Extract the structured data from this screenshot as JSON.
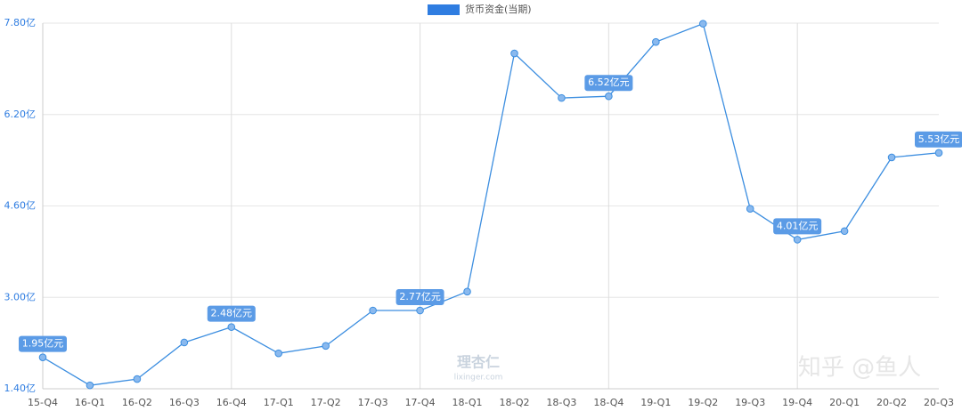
{
  "chart_data": {
    "type": "line",
    "legend": "货币资金(当期)",
    "categories": [
      "15-Q4",
      "16-Q1",
      "16-Q2",
      "16-Q3",
      "16-Q4",
      "17-Q1",
      "17-Q2",
      "17-Q3",
      "17-Q4",
      "18-Q1",
      "18-Q2",
      "18-Q3",
      "18-Q4",
      "19-Q1",
      "19-Q2",
      "19-Q3",
      "19-Q4",
      "20-Q1",
      "20-Q2",
      "20-Q3"
    ],
    "series": [
      {
        "name": "货币资金(当期)",
        "color": "#3c8ee0",
        "values": [
          1.95,
          1.46,
          1.57,
          2.21,
          2.48,
          2.02,
          2.15,
          2.77,
          2.77,
          3.1,
          7.27,
          6.49,
          6.52,
          7.47,
          7.79,
          4.55,
          4.01,
          4.16,
          5.45,
          5.53
        ],
        "value_labels": [
          "1.95亿元",
          null,
          null,
          null,
          "2.48亿元",
          null,
          null,
          null,
          "2.77亿元",
          null,
          null,
          null,
          "6.52亿元",
          null,
          null,
          null,
          "4.01亿元",
          null,
          null,
          "5.53亿元"
        ]
      }
    ],
    "ylim": [
      1.4,
      7.8
    ],
    "yticks": [
      {
        "value": 1.4,
        "label": "1.40亿"
      },
      {
        "value": 3.0,
        "label": "3.00亿"
      },
      {
        "value": 4.6,
        "label": "4.60亿"
      },
      {
        "value": 6.2,
        "label": "6.20亿"
      },
      {
        "value": 7.8,
        "label": "7.80亿"
      }
    ],
    "grid": true,
    "watermarks": [
      "理杏仁",
      "lixinger.com",
      "知乎 @鱼人"
    ]
  }
}
